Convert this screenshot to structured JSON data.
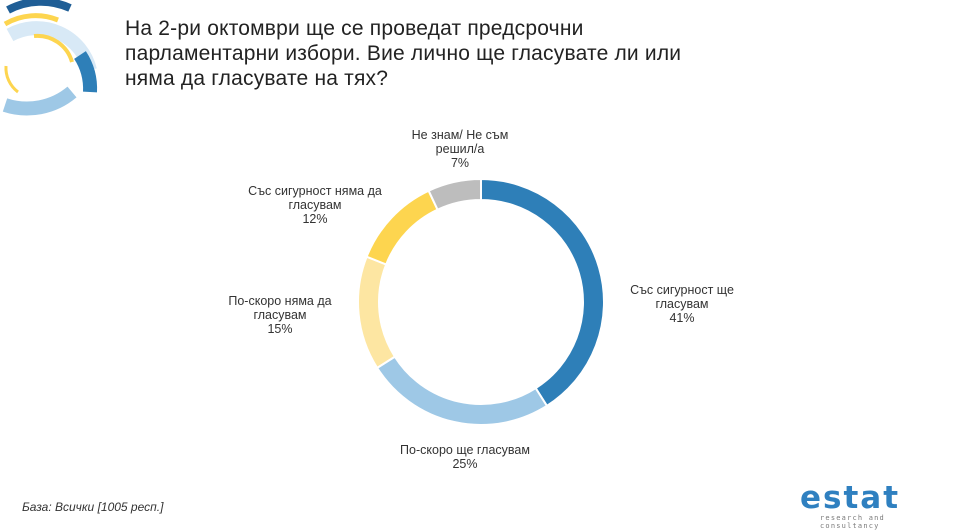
{
  "title_lines": [
    "На 2-ри октомври ще се проведат предсрочни",
    "парламентарни избори. Вие лично ще гласувате ли или",
    "няма да гласувате на тях?"
  ],
  "footnote": "База: Всички [1005 респ.]",
  "brand": {
    "name": "estat",
    "tagline": "research and consultancy"
  },
  "colors": {
    "dark_blue": "#2e7fb8",
    "light_blue": "#9ec8e6",
    "pale_yellow": "#fde6a2",
    "yellow": "#fdd54f",
    "gray": "#bdbdbd"
  },
  "chart_data": {
    "type": "pie",
    "variant": "donut",
    "slices": [
      {
        "label_lines": [
          "Със сигурност ще",
          "гласувам"
        ],
        "value": 41,
        "value_label": "41%",
        "color": "#2e7fb8"
      },
      {
        "label_lines": [
          "По-скоро ще гласувам"
        ],
        "value": 25,
        "value_label": "25%",
        "color": "#9ec8e6"
      },
      {
        "label_lines": [
          "По-скоро няма да",
          "гласувам"
        ],
        "value": 15,
        "value_label": "15%",
        "color": "#fde6a2"
      },
      {
        "label_lines": [
          "Със сигурност няма да",
          "гласувам"
        ],
        "value": 12,
        "value_label": "12%",
        "color": "#fdd54f"
      },
      {
        "label_lines": [
          "Не знам/ Не съм",
          "решил/а"
        ],
        "value": 7,
        "value_label": "7%",
        "color": "#bdbdbd"
      }
    ]
  }
}
